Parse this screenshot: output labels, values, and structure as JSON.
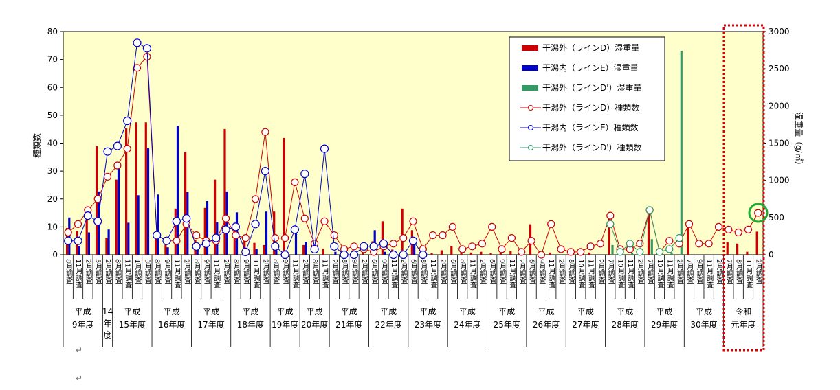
{
  "chart_data": {
    "type": "bar",
    "y_left_label": "種類数",
    "y_right_label": "湿重量（g/㎡）",
    "y_left_ticks": [
      "0",
      "10",
      "20",
      "30",
      "40",
      "50",
      "60",
      "70",
      "80"
    ],
    "y_right_ticks": [
      "0",
      "500",
      "1000",
      "1500",
      "2000",
      "2500",
      "3000"
    ],
    "ylim_left": [
      0,
      80
    ],
    "ylim_right": [
      0,
      3000
    ],
    "grid": false,
    "legend_position": "top-right",
    "colors": {
      "plot_bg": "#FFFFCC",
      "red": "#CC0000",
      "blue": "#0000CC",
      "green": "#339966",
      "highlight_box": "#DD0000",
      "highlight_circle": "#22AA33"
    },
    "legend": [
      {
        "label": "干潟外（ラインD）湿重量",
        "kind": "bar",
        "color": "#CC0000"
      },
      {
        "label": "干潟内（ラインE）湿重量",
        "kind": "bar",
        "color": "#0000CC"
      },
      {
        "label": "干潟外（ラインD'）湿重量",
        "kind": "bar",
        "color": "#339966"
      },
      {
        "label": "干潟外（ラインD）種類数",
        "kind": "line",
        "color": "#CC0000"
      },
      {
        "label": "干潟内（ラインE）種類数",
        "kind": "line",
        "color": "#0000CC"
      },
      {
        "label": "干潟外（ラインD'）種類数",
        "kind": "line",
        "color": "#339966"
      }
    ],
    "categories": [
      "8月調査",
      "11月調査",
      "2月調査",
      "5月調査",
      "2月調査",
      "8月調査",
      "11月調査",
      "1月調査",
      "3月調査",
      "8月調査",
      "9月調査",
      "11月調査",
      "2月調査",
      "8月調査",
      "9月調査",
      "11月調査",
      "2月調査",
      "8月調査",
      "9月調査",
      "11月調査",
      "2月調査",
      "8月調査",
      "9月調査",
      "11月調査",
      "2月調査",
      "8月調査",
      "11月調査",
      "2月調査",
      "8月調査",
      "9月調査",
      "2月調査",
      "6月調査",
      "9月調査",
      "11月調査",
      "2月調査",
      "6月調査",
      "8月調査",
      "11月調査",
      "2月調査",
      "6月調査",
      "8月調査",
      "11月調査",
      "2月調査",
      "6月調査",
      "9月調査",
      "11月調査",
      "2月調査",
      "6月調査",
      "9月調査",
      "11月調査",
      "2月調査",
      "8月調査",
      "10月調査",
      "11月調査",
      "2月調査",
      "7月調査",
      "10月調査",
      "11月調査",
      "2月調査",
      "7月調査",
      "10月調査",
      "11月調査",
      "2月調査",
      "7月調査",
      "9月調査",
      "11月調査",
      "2月調査",
      "7月調査",
      "8月調査",
      "11月調査",
      "2月調査"
    ],
    "groups": [
      {
        "label": "平成9年度",
        "count": 4
      },
      {
        "label": "14年度",
        "count": 1
      },
      {
        "label": "平成15年度",
        "count": 4
      },
      {
        "label": "平成16年度",
        "count": 4
      },
      {
        "label": "平成17年度",
        "count": 4
      },
      {
        "label": "平成18年度",
        "count": 4
      },
      {
        "label": "平成19年度",
        "count": 3
      },
      {
        "label": "平成20年度",
        "count": 3
      },
      {
        "label": "平成21年度",
        "count": 4
      },
      {
        "label": "平成22年度",
        "count": 4
      },
      {
        "label": "平成23年度",
        "count": 4
      },
      {
        "label": "平成24年度",
        "count": 4
      },
      {
        "label": "平成25年度",
        "count": 4
      },
      {
        "label": "平成26年度",
        "count": 4
      },
      {
        "label": "平成27年度",
        "count": 4
      },
      {
        "label": "平成28年度",
        "count": 4
      },
      {
        "label": "平成29年度",
        "count": 4
      },
      {
        "label": "平成30年度",
        "count": 4
      },
      {
        "label": "令和元年度",
        "count": 4
      }
    ],
    "series": [
      {
        "name": "干潟外（ラインD）湿重量",
        "type": "bar",
        "axis": "right",
        "values": [
          360,
          320,
          480,
          1460,
          230,
          1010,
          1700,
          1780,
          1780,
          270,
          240,
          620,
          1380,
          200,
          630,
          1010,
          1690,
          430,
          250,
          160,
          130,
          580,
          1570,
          0,
          130,
          0,
          80,
          0,
          0,
          60,
          40,
          180,
          450,
          70,
          620,
          330,
          40,
          20,
          60,
          120,
          40,
          30,
          40,
          20,
          40,
          50,
          40,
          410,
          20,
          30,
          0,
          30,
          40,
          30,
          0,
          550,
          0,
          0,
          30,
          560,
          0,
          0,
          0,
          440,
          0,
          0,
          0,
          170,
          150,
          40,
          310
        ]
      },
      {
        "name": "干潟内（ラインE）湿重量",
        "type": "bar",
        "axis": "right",
        "values": [
          500,
          120,
          300,
          850,
          340,
          1160,
          430,
          800,
          1430,
          810,
          100,
          1730,
          840,
          150,
          720,
          440,
          850,
          570,
          70,
          80,
          580,
          60,
          60,
          300,
          170,
          0,
          0,
          40,
          50,
          0,
          0,
          330,
          40,
          20,
          20,
          180,
          0,
          0,
          0,
          0,
          0,
          0,
          0,
          0,
          0,
          0,
          0,
          0,
          0,
          0,
          0,
          0,
          0,
          0,
          0,
          0,
          0,
          0,
          0,
          0,
          0,
          0,
          0,
          0,
          0,
          0,
          0,
          0,
          0,
          0,
          0
        ]
      },
      {
        "name": "干潟外（ラインD'）湿重量",
        "type": "bar",
        "axis": "right",
        "values": [
          null,
          null,
          null,
          null,
          null,
          null,
          null,
          null,
          null,
          null,
          null,
          null,
          null,
          null,
          null,
          null,
          null,
          null,
          null,
          null,
          null,
          null,
          null,
          null,
          null,
          null,
          null,
          null,
          null,
          null,
          null,
          null,
          null,
          null,
          null,
          null,
          null,
          null,
          null,
          null,
          null,
          null,
          null,
          null,
          null,
          null,
          null,
          null,
          null,
          null,
          null,
          null,
          null,
          null,
          null,
          130,
          20,
          30,
          20,
          210,
          30,
          30,
          2740,
          null,
          null,
          null,
          null,
          null,
          null,
          null,
          null
        ]
      },
      {
        "name": "干潟外（ラインD）種類数",
        "type": "line",
        "axis": "left",
        "values": [
          8,
          11,
          16,
          20,
          28,
          32,
          38,
          67,
          71,
          7,
          5,
          5,
          11,
          7,
          5,
          5,
          13,
          7,
          6,
          20,
          44,
          6,
          6,
          26,
          13,
          4,
          12,
          7,
          2,
          3,
          2,
          1,
          3,
          4,
          6,
          12,
          2,
          7,
          7,
          10,
          2,
          3,
          4,
          10,
          2,
          6,
          1,
          5,
          0,
          11,
          2,
          1,
          1,
          3,
          4,
          14,
          2,
          2,
          4,
          16,
          1,
          5,
          4,
          11,
          4,
          4,
          10,
          9,
          8,
          9,
          15
        ]
      },
      {
        "name": "干潟内（ラインE）種類数",
        "type": "line",
        "axis": "left",
        "values": [
          5,
          5,
          14,
          12,
          37,
          39,
          48,
          76,
          74,
          7,
          5,
          12,
          13,
          3,
          4,
          6,
          9,
          10,
          1,
          11,
          30,
          3,
          0,
          9,
          29,
          2,
          38,
          3,
          0,
          0,
          3,
          3,
          4,
          0,
          0,
          5,
          0,
          null,
          null,
          null,
          null,
          null,
          null,
          null,
          null,
          null,
          null,
          null,
          null,
          null,
          null,
          null,
          null,
          null,
          null,
          null,
          null,
          null,
          null,
          null,
          null,
          null,
          null,
          null,
          null,
          null,
          null,
          null,
          null,
          null,
          null
        ]
      },
      {
        "name": "干潟外（ラインD'）種類数",
        "type": "line",
        "axis": "left",
        "values": [
          null,
          null,
          null,
          null,
          null,
          null,
          null,
          null,
          null,
          null,
          null,
          null,
          null,
          null,
          null,
          null,
          null,
          null,
          null,
          null,
          null,
          null,
          null,
          null,
          null,
          null,
          null,
          null,
          null,
          null,
          null,
          null,
          null,
          null,
          null,
          null,
          null,
          null,
          null,
          null,
          null,
          null,
          null,
          null,
          null,
          null,
          null,
          null,
          null,
          null,
          null,
          null,
          null,
          null,
          null,
          11,
          1,
          4,
          1,
          16,
          1,
          2,
          6,
          null,
          null,
          null,
          null,
          null,
          null,
          null,
          null
        ]
      }
    ]
  },
  "page": {
    "mark1": "↵",
    "mark2": "↵"
  }
}
